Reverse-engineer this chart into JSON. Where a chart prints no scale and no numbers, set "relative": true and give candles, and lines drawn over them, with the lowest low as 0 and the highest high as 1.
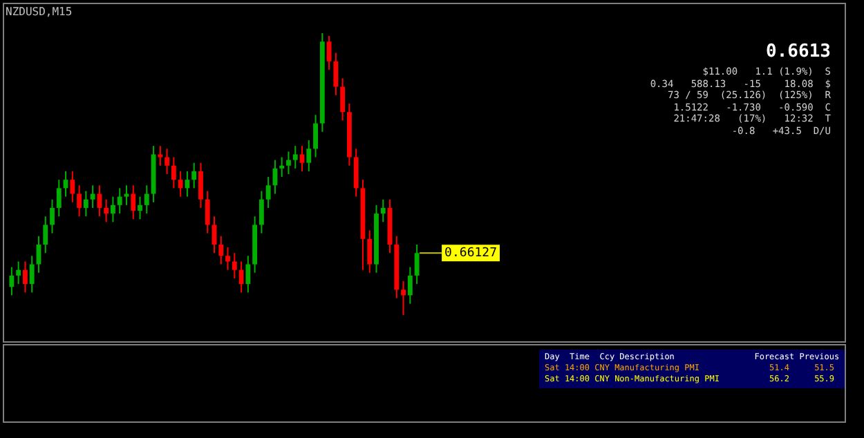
{
  "chart_data": {
    "type": "candlestick",
    "title": "NZDUSD,M15",
    "relative": true,
    "categories": [
      null,
      null,
      null,
      null,
      null,
      null,
      null,
      null,
      null,
      null,
      null,
      null,
      null,
      null,
      null,
      null,
      null,
      null,
      null,
      null,
      null,
      null,
      null,
      null,
      null,
      null,
      null,
      null,
      null,
      null,
      null,
      null,
      null,
      null,
      null,
      null,
      null,
      null,
      null,
      null,
      null,
      null,
      null,
      null,
      null,
      null,
      null,
      null,
      null,
      null,
      null,
      null,
      null,
      null,
      null,
      null,
      null,
      null,
      null,
      null,
      null
    ],
    "ohlc": [
      [
        0.1,
        0.17,
        0.07,
        0.14
      ],
      [
        0.14,
        0.19,
        0.11,
        0.16
      ],
      [
        0.16,
        0.19,
        0.08,
        0.11
      ],
      [
        0.11,
        0.21,
        0.08,
        0.18
      ],
      [
        0.18,
        0.28,
        0.15,
        0.25
      ],
      [
        0.25,
        0.35,
        0.22,
        0.32
      ],
      [
        0.32,
        0.41,
        0.29,
        0.38
      ],
      [
        0.38,
        0.48,
        0.35,
        0.45
      ],
      [
        0.45,
        0.51,
        0.42,
        0.48
      ],
      [
        0.48,
        0.51,
        0.4,
        0.43
      ],
      [
        0.43,
        0.46,
        0.35,
        0.38
      ],
      [
        0.38,
        0.44,
        0.35,
        0.41
      ],
      [
        0.41,
        0.46,
        0.38,
        0.43
      ],
      [
        0.43,
        0.46,
        0.35,
        0.38
      ],
      [
        0.38,
        0.41,
        0.33,
        0.36
      ],
      [
        0.36,
        0.42,
        0.33,
        0.39
      ],
      [
        0.39,
        0.45,
        0.36,
        0.42
      ],
      [
        0.42,
        0.46,
        0.39,
        0.43
      ],
      [
        0.43,
        0.46,
        0.34,
        0.37
      ],
      [
        0.37,
        0.42,
        0.34,
        0.39
      ],
      [
        0.39,
        0.46,
        0.36,
        0.43
      ],
      [
        0.43,
        0.6,
        0.4,
        0.57
      ],
      [
        0.57,
        0.6,
        0.53,
        0.56
      ],
      [
        0.56,
        0.59,
        0.5,
        0.53
      ],
      [
        0.53,
        0.56,
        0.45,
        0.48
      ],
      [
        0.48,
        0.51,
        0.42,
        0.45
      ],
      [
        0.45,
        0.51,
        0.42,
        0.48
      ],
      [
        0.48,
        0.54,
        0.45,
        0.51
      ],
      [
        0.51,
        0.54,
        0.38,
        0.41
      ],
      [
        0.41,
        0.44,
        0.29,
        0.32
      ],
      [
        0.32,
        0.35,
        0.22,
        0.25
      ],
      [
        0.25,
        0.28,
        0.18,
        0.21
      ],
      [
        0.21,
        0.24,
        0.16,
        0.19
      ],
      [
        0.19,
        0.22,
        0.13,
        0.16
      ],
      [
        0.16,
        0.19,
        0.08,
        0.11
      ],
      [
        0.11,
        0.21,
        0.08,
        0.18
      ],
      [
        0.18,
        0.35,
        0.15,
        0.32
      ],
      [
        0.32,
        0.44,
        0.29,
        0.41
      ],
      [
        0.41,
        0.49,
        0.38,
        0.46
      ],
      [
        0.46,
        0.55,
        0.43,
        0.52
      ],
      [
        0.52,
        0.56,
        0.49,
        0.53
      ],
      [
        0.53,
        0.58,
        0.5,
        0.55
      ],
      [
        0.55,
        0.6,
        0.52,
        0.57
      ],
      [
        0.57,
        0.6,
        0.51,
        0.54
      ],
      [
        0.54,
        0.62,
        0.51,
        0.59
      ],
      [
        0.59,
        0.71,
        0.56,
        0.68
      ],
      [
        0.68,
        1,
        0.65,
        0.97
      ],
      [
        0.97,
        0.99,
        0.87,
        0.9
      ],
      [
        0.9,
        0.93,
        0.78,
        0.81
      ],
      [
        0.81,
        0.84,
        0.69,
        0.72
      ],
      [
        0.72,
        0.75,
        0.53,
        0.56
      ],
      [
        0.56,
        0.59,
        0.42,
        0.45
      ],
      [
        0.45,
        0.48,
        0.16,
        0.27
      ],
      [
        0.27,
        0.3,
        0.15,
        0.18
      ],
      [
        0.18,
        0.39,
        0.15,
        0.36
      ],
      [
        0.36,
        0.41,
        0.33,
        0.38
      ],
      [
        0.38,
        0.41,
        0.22,
        0.25
      ],
      [
        0.25,
        0.28,
        0.06,
        0.09
      ],
      [
        0.09,
        0.12,
        0,
        0.07
      ],
      [
        0.07,
        0.17,
        0.04,
        0.14
      ],
      [
        0.14,
        0.25,
        0.11,
        0.22
      ]
    ],
    "colors": [
      "#00b000",
      "#00b000",
      "#ff0000",
      "#00b000",
      "#00b000",
      "#00b000",
      "#00b000",
      "#00b000",
      "#00b000",
      "#ff0000",
      "#ff0000",
      "#00b000",
      "#00b000",
      "#ff0000",
      "#ff0000",
      "#00b000",
      "#00b000",
      "#00b000",
      "#ff0000",
      "#00b000",
      "#00b000",
      "#00b000",
      "#ff0000",
      "#ff0000",
      "#ff0000",
      "#ff0000",
      "#00b000",
      "#00b000",
      "#ff0000",
      "#ff0000",
      "#ff0000",
      "#ff0000",
      "#ff0000",
      "#ff0000",
      "#ff0000",
      "#00b000",
      "#00b000",
      "#00b000",
      "#00b000",
      "#00b000",
      "#00b000",
      "#00b000",
      "#00b000",
      "#ff0000",
      "#00b000",
      "#00b000",
      "#00b000",
      "#ff0000",
      "#ff0000",
      "#ff0000",
      "#ff0000",
      "#ff0000",
      "#ff0000",
      "#ff0000",
      "#00b000",
      "#00b000",
      "#ff0000",
      "#ff0000",
      "#ff0000",
      "#00b000",
      "#00b000"
    ],
    "annotations": [
      "0.66127",
      "0.6613",
      "$11.00   1.1 (1.9%)  S",
      "0.34   588.13   -15    18.08  $",
      "73 / 59  (25.126)  (125%)  R",
      "1.5122   -1.730   -0.590  C",
      "21:47:28   (17%)   12:32  T",
      "-0.8   +43.5  D/U",
      "Day  Time  Ccy Description                Forecast Previous",
      "Sat 14:00 CNY Manufacturing PMI              51.4     51.5",
      "Sat 14:00 CNY Non-Manufacturing PMI          56.2     55.9"
    ]
  }
}
